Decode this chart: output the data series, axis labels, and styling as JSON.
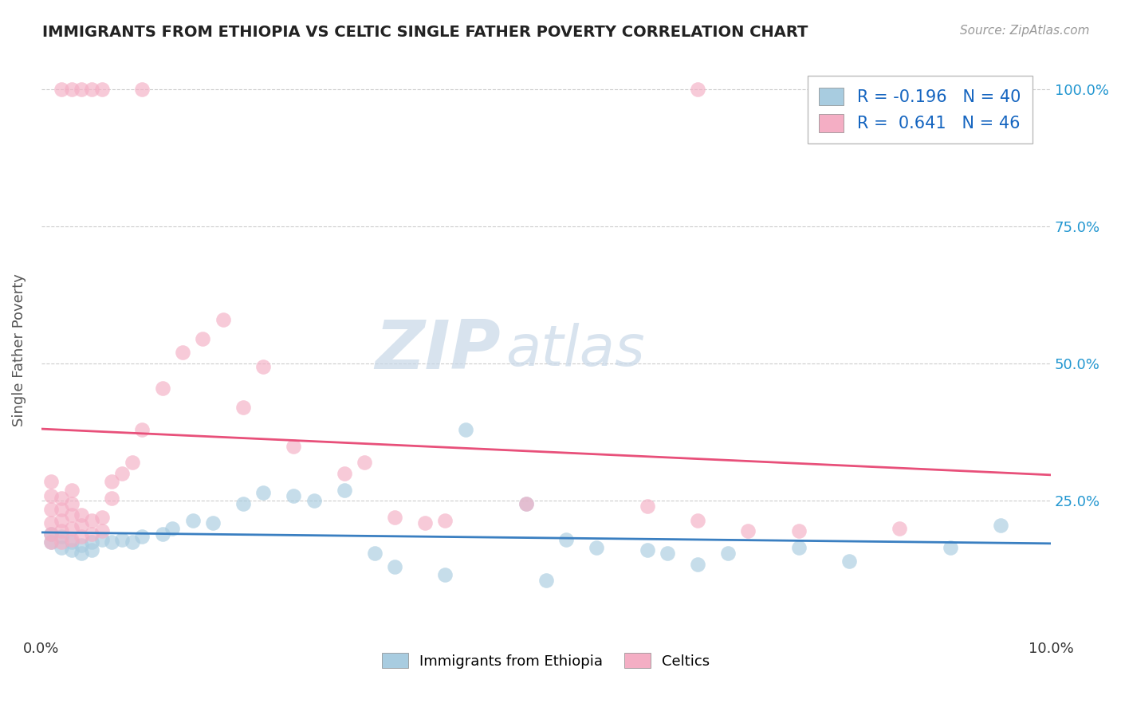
{
  "title": "IMMIGRANTS FROM ETHIOPIA VS CELTIC SINGLE FATHER POVERTY CORRELATION CHART",
  "source": "Source: ZipAtlas.com",
  "ylabel": "Single Father Poverty",
  "legend_label1": "Immigrants from Ethiopia",
  "legend_label2": "Celtics",
  "r1": -0.196,
  "n1": 40,
  "r2": 0.641,
  "n2": 46,
  "color1": "#a8cce0",
  "color2": "#f4aec4",
  "trendline_color1": "#3a7fc1",
  "trendline_color2": "#e8507a",
  "watermark_zip_color": "#c8d8e8",
  "watermark_atlas_color": "#c8d8e8",
  "xlim": [
    0.0,
    0.1
  ],
  "ylim": [
    0.0,
    1.05
  ],
  "yticks": [
    0.25,
    0.5,
    0.75,
    1.0
  ],
  "ytick_labels": [
    "25.0%",
    "50.0%",
    "75.0%",
    "100.0%"
  ],
  "right_ytick_color": "#2196d0",
  "blue_scatter": [
    [
      0.001,
      0.19
    ],
    [
      0.001,
      0.175
    ],
    [
      0.002,
      0.185
    ],
    [
      0.002,
      0.165
    ],
    [
      0.003,
      0.175
    ],
    [
      0.003,
      0.16
    ],
    [
      0.004,
      0.17
    ],
    [
      0.004,
      0.155
    ],
    [
      0.005,
      0.175
    ],
    [
      0.005,
      0.16
    ],
    [
      0.006,
      0.18
    ],
    [
      0.007,
      0.175
    ],
    [
      0.008,
      0.18
    ],
    [
      0.009,
      0.175
    ],
    [
      0.01,
      0.185
    ],
    [
      0.012,
      0.19
    ],
    [
      0.013,
      0.2
    ],
    [
      0.015,
      0.215
    ],
    [
      0.017,
      0.21
    ],
    [
      0.02,
      0.245
    ],
    [
      0.022,
      0.265
    ],
    [
      0.025,
      0.26
    ],
    [
      0.027,
      0.25
    ],
    [
      0.03,
      0.27
    ],
    [
      0.033,
      0.155
    ],
    [
      0.035,
      0.13
    ],
    [
      0.04,
      0.115
    ],
    [
      0.042,
      0.38
    ],
    [
      0.048,
      0.245
    ],
    [
      0.05,
      0.105
    ],
    [
      0.052,
      0.18
    ],
    [
      0.055,
      0.165
    ],
    [
      0.06,
      0.16
    ],
    [
      0.062,
      0.155
    ],
    [
      0.065,
      0.135
    ],
    [
      0.068,
      0.155
    ],
    [
      0.075,
      0.165
    ],
    [
      0.08,
      0.14
    ],
    [
      0.09,
      0.165
    ],
    [
      0.095,
      0.205
    ]
  ],
  "pink_scatter": [
    [
      0.001,
      0.175
    ],
    [
      0.001,
      0.19
    ],
    [
      0.001,
      0.21
    ],
    [
      0.001,
      0.235
    ],
    [
      0.001,
      0.26
    ],
    [
      0.001,
      0.285
    ],
    [
      0.002,
      0.175
    ],
    [
      0.002,
      0.195
    ],
    [
      0.002,
      0.215
    ],
    [
      0.002,
      0.235
    ],
    [
      0.002,
      0.255
    ],
    [
      0.003,
      0.18
    ],
    [
      0.003,
      0.2
    ],
    [
      0.003,
      0.225
    ],
    [
      0.003,
      0.245
    ],
    [
      0.003,
      0.27
    ],
    [
      0.004,
      0.185
    ],
    [
      0.004,
      0.205
    ],
    [
      0.004,
      0.225
    ],
    [
      0.005,
      0.19
    ],
    [
      0.005,
      0.215
    ],
    [
      0.006,
      0.195
    ],
    [
      0.006,
      0.22
    ],
    [
      0.007,
      0.255
    ],
    [
      0.007,
      0.285
    ],
    [
      0.008,
      0.3
    ],
    [
      0.009,
      0.32
    ],
    [
      0.01,
      0.38
    ],
    [
      0.012,
      0.455
    ],
    [
      0.014,
      0.52
    ],
    [
      0.016,
      0.545
    ],
    [
      0.018,
      0.58
    ],
    [
      0.02,
      0.42
    ],
    [
      0.022,
      0.495
    ],
    [
      0.025,
      0.35
    ],
    [
      0.03,
      0.3
    ],
    [
      0.032,
      0.32
    ],
    [
      0.035,
      0.22
    ],
    [
      0.038,
      0.21
    ],
    [
      0.04,
      0.215
    ],
    [
      0.048,
      0.245
    ],
    [
      0.06,
      0.24
    ],
    [
      0.065,
      0.215
    ],
    [
      0.07,
      0.195
    ],
    [
      0.075,
      0.195
    ],
    [
      0.085,
      0.2
    ]
  ],
  "pink_top_scatter": [
    [
      0.002,
      1.0
    ],
    [
      0.003,
      1.0
    ],
    [
      0.004,
      1.0
    ],
    [
      0.005,
      1.0
    ],
    [
      0.006,
      1.0
    ],
    [
      0.01,
      1.0
    ],
    [
      0.065,
      1.0
    ]
  ]
}
